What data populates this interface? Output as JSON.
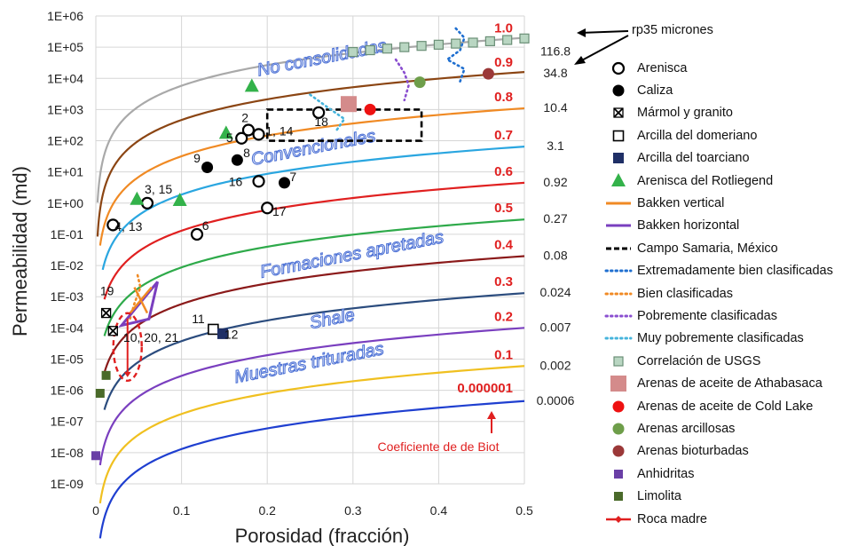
{
  "chart_data": {
    "type": "line",
    "xlabel": "Porosidad (fracción)",
    "ylabel": "Permeabilidad (md)",
    "xlim": [
      0,
      0.5
    ],
    "ylim_log10": [
      -9,
      6
    ],
    "x_ticks": [
      "0",
      "0.1",
      "0.2",
      "0.3",
      "0.4",
      "0.5"
    ],
    "y_ticks": [
      "1E-09",
      "1E-08",
      "1E-07",
      "1E-06",
      "1E-05",
      "1E-04",
      "1E-03",
      "1E-02",
      "1E-01",
      "1E+00",
      "1E+01",
      "1E+02",
      "1E+03",
      "1E+04",
      "1E+05",
      "1E+06"
    ],
    "grid": true,
    "series": [
      {
        "biot": "1.0",
        "rp35": "116.8",
        "color": "#a9a9a9",
        "k_at_0_5": 200000.0,
        "x_min": 0.002
      },
      {
        "biot": "0.9",
        "rp35": "34.8",
        "color": "#8b4513",
        "k_at_0_5": 16000.0,
        "x_min": 0.002
      },
      {
        "biot": "0.8",
        "rp35": "10.4",
        "color": "#f08a24",
        "k_at_0_5": 1100.0,
        "x_min": 0.005
      },
      {
        "biot": "0.7",
        "rp35": "3.1",
        "color": "#2aa6e0",
        "k_at_0_5": 65,
        "x_min": 0.008
      },
      {
        "biot": "0.6",
        "rp35": "0.92",
        "color": "#e02020",
        "k_at_0_5": 4.5,
        "x_min": 0.01
      },
      {
        "biot": "0.5",
        "rp35": "0.27",
        "color": "#2eaa4a",
        "k_at_0_5": 0.3,
        "x_min": 0.01
      },
      {
        "biot": "0.4",
        "rp35": "0.08",
        "color": "#8b1a1a",
        "k_at_0_5": 0.02,
        "x_min": 0.01
      },
      {
        "biot": "0.3",
        "rp35": "0.024",
        "color": "#2b4c7e",
        "k_at_0_5": 0.0013,
        "x_min": 0.01
      },
      {
        "biot": "0.2",
        "rp35": "0.007",
        "color": "#7a3fbf",
        "k_at_0_5": 0.0001,
        "x_min": 0.005
      },
      {
        "biot": "0.1",
        "rp35": "0.002",
        "color": "#f0c020",
        "k_at_0_5": 6e-06,
        "x_min": 0.005
      },
      {
        "biot": "0.000001",
        "rp35": "0.0006",
        "color": "#1f3fd0",
        "k_at_0_5": 4.5e-07,
        "x_min": 0.005
      }
    ],
    "points": [
      {
        "type": "Arenisca",
        "marker": "open-circle",
        "x": 0.02,
        "y": 0.2
      },
      {
        "type": "Arenisca",
        "marker": "open-circle",
        "x": 0.06,
        "y": 1.0
      },
      {
        "type": "Arenisca",
        "marker": "open-circle",
        "x": 0.118,
        "y": 0.1
      },
      {
        "type": "Arenisca",
        "marker": "open-circle",
        "x": 0.17,
        "y": 120
      },
      {
        "type": "Arenisca",
        "marker": "open-circle",
        "x": 0.178,
        "y": 220
      },
      {
        "type": "Arenisca",
        "marker": "open-circle",
        "x": 0.19,
        "y": 160
      },
      {
        "type": "Arenisca",
        "marker": "open-circle",
        "x": 0.19,
        "y": 5
      },
      {
        "type": "Arenisca",
        "marker": "open-circle",
        "x": 0.2,
        "y": 0.7
      },
      {
        "type": "Arenisca",
        "marker": "open-circle",
        "x": 0.26,
        "y": 800
      },
      {
        "type": "Caliza",
        "marker": "filled-circle",
        "x": 0.13,
        "y": 14
      },
      {
        "type": "Caliza",
        "marker": "filled-circle",
        "x": 0.165,
        "y": 24
      },
      {
        "type": "Caliza",
        "marker": "filled-circle",
        "x": 0.22,
        "y": 4.5
      },
      {
        "type": "Mármol y granito",
        "marker": "x-square",
        "x": 0.012,
        "y": 0.0003
      },
      {
        "type": "Mármol y granito",
        "marker": "x-square",
        "x": 0.02,
        "y": 8e-05
      },
      {
        "type": "Arcilla del domeriano",
        "marker": "open-square",
        "x": 0.137,
        "y": 9e-05
      },
      {
        "type": "Arcilla del toarciano",
        "marker": "navy-square",
        "x": 0.148,
        "y": 6.5e-05
      },
      {
        "type": "Arenisca del Rotliegend",
        "marker": "green-triangle",
        "x": 0.048,
        "y": 1.3
      },
      {
        "type": "Arenisca del Rotliegend",
        "marker": "green-triangle",
        "x": 0.098,
        "y": 1.2
      },
      {
        "type": "Arenisca del Rotliegend",
        "marker": "green-triangle",
        "x": 0.152,
        "y": 170
      },
      {
        "type": "Arenisca del Rotliegend",
        "marker": "green-triangle",
        "x": 0.182,
        "y": 5500
      },
      {
        "type": "Arenas de aceite de Athabasaca",
        "marker": "pink-square",
        "x": 0.295,
        "y": 1500
      },
      {
        "type": "Arenas de aceite de Cold Lake",
        "marker": "red-circle",
        "x": 0.32,
        "y": 1000
      },
      {
        "type": "Arenas arcillosas",
        "marker": "green-circle",
        "x": 0.378,
        "y": 7500
      },
      {
        "type": "Arenas bioturbadas",
        "marker": "darkred-circle",
        "x": 0.458,
        "y": 14000.0
      },
      {
        "type": "Anhidritas",
        "marker": "purple-square",
        "x": 0.0,
        "y": 8e-09
      },
      {
        "type": "Limolita",
        "marker": "olive-square",
        "x": 0.005,
        "y": 8e-07
      },
      {
        "type": "Limolita",
        "marker": "olive-square",
        "x": 0.012,
        "y": 3e-06
      }
    ],
    "usgs_correlation": [
      {
        "x": 0.3,
        "y": 70000.0
      },
      {
        "x": 0.32,
        "y": 80000.0
      },
      {
        "x": 0.34,
        "y": 90000.0
      },
      {
        "x": 0.36,
        "y": 100000.0
      },
      {
        "x": 0.38,
        "y": 110000.0
      },
      {
        "x": 0.4,
        "y": 120000.0
      },
      {
        "x": 0.42,
        "y": 130000.0
      },
      {
        "x": 0.44,
        "y": 140000.0
      },
      {
        "x": 0.46,
        "y": 155000.0
      },
      {
        "x": 0.48,
        "y": 170000.0
      },
      {
        "x": 0.5,
        "y": 190000.0
      }
    ],
    "sorting_trends": [
      {
        "name": "Extremadamente bien clasificadas",
        "color": "#1f6fd0",
        "points": [
          {
            "x": 0.42,
            "y": 400000.0
          },
          {
            "x": 0.43,
            "y": 200000.0
          },
          {
            "x": 0.425,
            "y": 80000.0
          },
          {
            "x": 0.41,
            "y": 40000.0
          },
          {
            "x": 0.43,
            "y": 20000.0
          },
          {
            "x": 0.425,
            "y": 8000.0
          }
        ]
      },
      {
        "name": "Bien clasificadas",
        "color": "#f08a24",
        "points": [
          {
            "x": 0.04,
            "y": 0.0002
          },
          {
            "x": 0.045,
            "y": 0.0006
          },
          {
            "x": 0.052,
            "y": 0.002
          },
          {
            "x": 0.048,
            "y": 0.006
          }
        ]
      },
      {
        "name": "Pobremente clasificadas",
        "color": "#8a4fd0",
        "points": [
          {
            "x": 0.35,
            "y": 40000.0
          },
          {
            "x": 0.36,
            "y": 15000.0
          },
          {
            "x": 0.365,
            "y": 6000.0
          },
          {
            "x": 0.36,
            "y": 2000.0
          }
        ]
      },
      {
        "name": "Muy pobremente clasificadas",
        "color": "#46b4dc",
        "points": [
          {
            "x": 0.25,
            "y": 3000.0
          },
          {
            "x": 0.27,
            "y": 1200.0
          },
          {
            "x": 0.29,
            "y": 500.0
          },
          {
            "x": 0.28,
            "y": 200.0
          }
        ]
      }
    ],
    "point_labels": [
      {
        "text": "2",
        "x": 0.17,
        "y": 400
      },
      {
        "text": "5",
        "x": 0.152,
        "y": 90
      },
      {
        "text": "1, 14",
        "x": 0.198,
        "y": 150
      },
      {
        "text": "18",
        "x": 0.255,
        "y": 300
      },
      {
        "text": "9",
        "x": 0.114,
        "y": 20
      },
      {
        "text": "8",
        "x": 0.172,
        "y": 30
      },
      {
        "text": "16",
        "x": 0.155,
        "y": 3.5
      },
      {
        "text": "7",
        "x": 0.226,
        "y": 5
      },
      {
        "text": "17",
        "x": 0.206,
        "y": 0.4
      },
      {
        "text": "3, 15",
        "x": 0.057,
        "y": 2
      },
      {
        "text": "4, 13",
        "x": 0.022,
        "y": 0.13
      },
      {
        "text": "6",
        "x": 0.124,
        "y": 0.14
      },
      {
        "text": "19",
        "x": 0.005,
        "y": 0.0011
      },
      {
        "text": "10, 20, 21",
        "x": 0.032,
        "y": 3.6e-05
      },
      {
        "text": "11",
        "x": 0.112,
        "y": 0.00014
      },
      {
        "text": "12",
        "x": 0.15,
        "y": 4.5e-05
      }
    ],
    "regions": [
      {
        "text": "No consolidadas",
        "x": 0.265,
        "y": 30000.0
      },
      {
        "text": "Convencionales",
        "x": 0.255,
        "y": 40
      },
      {
        "text": "Formaciones apretadas",
        "x": 0.3,
        "y": 0.015
      },
      {
        "text": "Shale",
        "x": 0.277,
        "y": 0.00013
      },
      {
        "text": "Muestras trituradas",
        "x": 0.25,
        "y": 5e-06
      }
    ],
    "campo_samaria_box": {
      "x": [
        0.2,
        0.38
      ],
      "y": [
        100,
        1000
      ]
    },
    "roca_madre_range": {
      "x": 0.037,
      "y": [
        3e-06,
        0.0002
      ]
    },
    "bakken": {
      "vertical": {
        "x": [
          0.04,
          0.065
        ],
        "y": [
          0.0003,
          0.002
        ]
      },
      "horizontal": {
        "x": [
          0.03,
          0.072
        ],
        "y": [
          0.00012,
          0.003
        ]
      }
    },
    "annotations": {
      "rp35": "rp35 micrones",
      "biot": "Coeficiente de de Biot"
    }
  },
  "legend": [
    {
      "label": "Arenisca",
      "symbol": "open-circle"
    },
    {
      "label": "Caliza",
      "symbol": "filled-circle"
    },
    {
      "label": "Mármol y granito",
      "symbol": "x-square"
    },
    {
      "label": "Arcilla del domeriano",
      "symbol": "open-square"
    },
    {
      "label": "Arcilla del toarciano",
      "symbol": "navy-square"
    },
    {
      "label": "Arenisca del Rotliegend",
      "symbol": "green-triangle"
    },
    {
      "label": "Bakken vertical",
      "symbol": "line-orange"
    },
    {
      "label": "Bakken horizontal",
      "symbol": "line-purple"
    },
    {
      "label": "Campo Samaria, México",
      "symbol": "dash-black"
    },
    {
      "label": "Extremadamente bien clasificadas",
      "symbol": "dot-blue"
    },
    {
      "label": "Bien clasificadas",
      "symbol": "dot-orange"
    },
    {
      "label": "Pobremente clasificadas",
      "symbol": "dot-purple"
    },
    {
      "label": "Muy pobremente clasificadas",
      "symbol": "dot-cyan"
    },
    {
      "label": "Correlación de USGS",
      "symbol": "usgs-square"
    },
    {
      "label": "Arenas de aceite de Athabasaca",
      "symbol": "pink-square"
    },
    {
      "label": "Arenas de aceite de Cold Lake",
      "symbol": "red-circle"
    },
    {
      "label": "Arenas arcillosas",
      "symbol": "green-circle"
    },
    {
      "label": "Arenas bioturbadas",
      "symbol": "darkred-circle"
    },
    {
      "label": "Anhidritas",
      "symbol": "purple-square"
    },
    {
      "label": "Limolita",
      "symbol": "olive-square"
    },
    {
      "label": "Roca madre",
      "symbol": "roca-line"
    }
  ],
  "colors": {
    "grid": "#d6d6d6",
    "biot_label": "#e02020",
    "region_text": "#4f73d6",
    "axis": "#444444"
  }
}
